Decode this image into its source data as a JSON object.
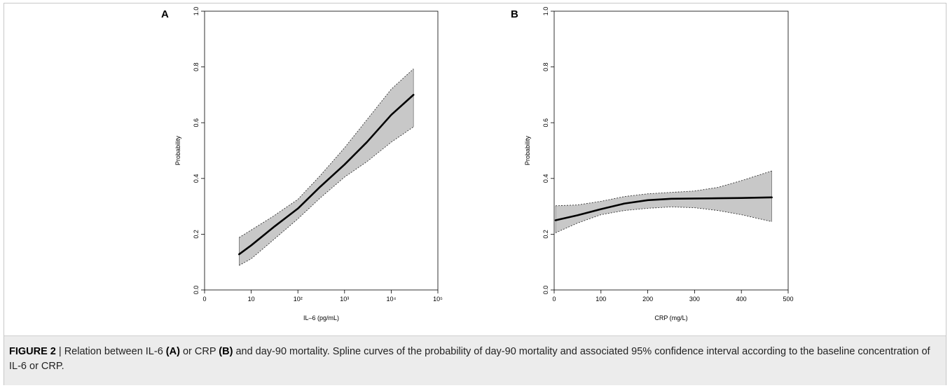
{
  "caption": {
    "label": "FIGURE 2",
    "separator": " | ",
    "part1": "Relation between IL-6 ",
    "ref_a": "(A)",
    "part2": " or CRP ",
    "ref_b": "(B)",
    "part3": " and day-90 mortality. Spline curves of the probability of day-90 mortality and associated 95% confidence interval according to the baseline concentration of IL-6 or CRP."
  },
  "chart_data": [
    {
      "panel": "A",
      "type": "line",
      "title": "",
      "xlabel": "IL–6 (pg/mL)",
      "ylabel": "Probability",
      "x_scale": "log10",
      "xlim": [
        1,
        100000
      ],
      "ylim": [
        0,
        1
      ],
      "x_ticks": [
        {
          "value": 1,
          "label": "0"
        },
        {
          "value": 10,
          "label": "10"
        },
        {
          "value": 100,
          "label": "10²"
        },
        {
          "value": 1000,
          "label": "10³"
        },
        {
          "value": 10000,
          "label": "10⁴"
        },
        {
          "value": 100000,
          "label": "10⁵"
        }
      ],
      "y_ticks": [
        0,
        0.2,
        0.4,
        0.6,
        0.8,
        1
      ],
      "y_tick_labels": [
        "0.0",
        "0.2",
        "0.4",
        "0.6",
        "0.8",
        "1.0"
      ],
      "grid": false,
      "colors": {
        "curve": "#000000",
        "band": "#c8c8c8"
      },
      "x": [
        5.5,
        10,
        30,
        100,
        300,
        1000,
        3000,
        10000,
        30000
      ],
      "estimate": [
        0.128,
        0.16,
        0.225,
        0.292,
        0.37,
        0.45,
        0.53,
        0.628,
        0.7
      ],
      "ci_lower": [
        0.088,
        0.112,
        0.18,
        0.255,
        0.33,
        0.405,
        0.46,
        0.53,
        0.585
      ],
      "ci_upper": [
        0.188,
        0.215,
        0.265,
        0.325,
        0.41,
        0.51,
        0.61,
        0.72,
        0.793
      ]
    },
    {
      "panel": "B",
      "type": "line",
      "title": "",
      "xlabel": "CRP (mg/L)",
      "ylabel": "Probability",
      "x_scale": "linear",
      "xlim": [
        0,
        500
      ],
      "ylim": [
        0,
        1
      ],
      "x_ticks": [
        {
          "value": 0,
          "label": "0"
        },
        {
          "value": 100,
          "label": "100"
        },
        {
          "value": 200,
          "label": "200"
        },
        {
          "value": 300,
          "label": "300"
        },
        {
          "value": 400,
          "label": "400"
        },
        {
          "value": 500,
          "label": "500"
        }
      ],
      "y_ticks": [
        0,
        0.2,
        0.4,
        0.6,
        0.8,
        1
      ],
      "y_tick_labels": [
        "0.0",
        "0.2",
        "0.4",
        "0.6",
        "0.8",
        "1.0"
      ],
      "grid": false,
      "colors": {
        "curve": "#000000",
        "band": "#c8c8c8"
      },
      "x": [
        3,
        50,
        100,
        150,
        200,
        250,
        300,
        350,
        400,
        465
      ],
      "estimate": [
        0.25,
        0.268,
        0.29,
        0.31,
        0.322,
        0.327,
        0.328,
        0.329,
        0.33,
        0.332
      ],
      "ci_lower": [
        0.205,
        0.24,
        0.27,
        0.285,
        0.293,
        0.298,
        0.295,
        0.285,
        0.27,
        0.245
      ],
      "ci_upper": [
        0.302,
        0.305,
        0.318,
        0.335,
        0.345,
        0.35,
        0.355,
        0.368,
        0.392,
        0.427
      ]
    }
  ]
}
